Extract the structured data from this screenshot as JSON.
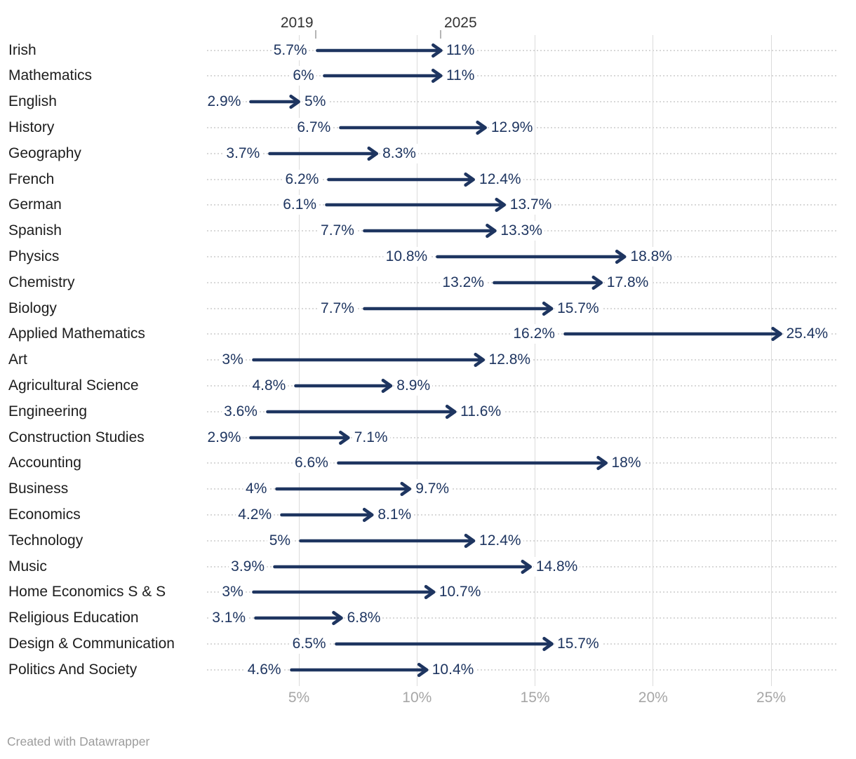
{
  "footer": {
    "credit": "Created with Datawrapper"
  },
  "colors": {
    "background": "#ffffff",
    "arrow": "#1e3560",
    "value_label": "#1e3560",
    "row_label": "#1d1d1d",
    "header": "#333333",
    "tick": "#b5b5b5",
    "gridline": "#dbdbdb",
    "dotted": "#d8d8d8",
    "axis_label": "#a6a6a6",
    "footer": "#9c9c9c"
  },
  "chart_data": {
    "type": "arrow",
    "column_headers": [
      "2019",
      "2025"
    ],
    "unit": "%",
    "x_axis": {
      "ticks": [
        5,
        10,
        15,
        20,
        25
      ],
      "tick_labels": [
        "5%",
        "10%",
        "15%",
        "20%",
        "25%"
      ],
      "range": [
        2,
        27.5
      ],
      "grid": true
    },
    "legend_position": "top-column-headers",
    "rows": [
      {
        "label": "Irish",
        "start": 5.7,
        "end": 11,
        "start_label": "5.7%",
        "end_label": "11%"
      },
      {
        "label": "Mathematics",
        "start": 6,
        "end": 11,
        "start_label": "6%",
        "end_label": "11%"
      },
      {
        "label": "English",
        "start": 2.9,
        "end": 5,
        "start_label": "2.9%",
        "end_label": "5%"
      },
      {
        "label": "History",
        "start": 6.7,
        "end": 12.9,
        "start_label": "6.7%",
        "end_label": "12.9%"
      },
      {
        "label": "Geography",
        "start": 3.7,
        "end": 8.3,
        "start_label": "3.7%",
        "end_label": "8.3%"
      },
      {
        "label": "French",
        "start": 6.2,
        "end": 12.4,
        "start_label": "6.2%",
        "end_label": "12.4%"
      },
      {
        "label": "German",
        "start": 6.1,
        "end": 13.7,
        "start_label": "6.1%",
        "end_label": "13.7%"
      },
      {
        "label": "Spanish",
        "start": 7.7,
        "end": 13.3,
        "start_label": "7.7%",
        "end_label": "13.3%"
      },
      {
        "label": "Physics",
        "start": 10.8,
        "end": 18.8,
        "start_label": "10.8%",
        "end_label": "18.8%"
      },
      {
        "label": "Chemistry",
        "start": 13.2,
        "end": 17.8,
        "start_label": "13.2%",
        "end_label": "17.8%"
      },
      {
        "label": "Biology",
        "start": 7.7,
        "end": 15.7,
        "start_label": "7.7%",
        "end_label": "15.7%"
      },
      {
        "label": "Applied Mathematics",
        "start": 16.2,
        "end": 25.4,
        "start_label": "16.2%",
        "end_label": "25.4%"
      },
      {
        "label": "Art",
        "start": 3,
        "end": 12.8,
        "start_label": "3%",
        "end_label": "12.8%"
      },
      {
        "label": "Agricultural Science",
        "start": 4.8,
        "end": 8.9,
        "start_label": "4.8%",
        "end_label": "8.9%"
      },
      {
        "label": "Engineering",
        "start": 3.6,
        "end": 11.6,
        "start_label": "3.6%",
        "end_label": "11.6%"
      },
      {
        "label": "Construction Studies",
        "start": 2.9,
        "end": 7.1,
        "start_label": "2.9%",
        "end_label": "7.1%"
      },
      {
        "label": "Accounting",
        "start": 6.6,
        "end": 18,
        "start_label": "6.6%",
        "end_label": "18%"
      },
      {
        "label": "Business",
        "start": 4,
        "end": 9.7,
        "start_label": "4%",
        "end_label": "9.7%"
      },
      {
        "label": "Economics",
        "start": 4.2,
        "end": 8.1,
        "start_label": "4.2%",
        "end_label": "8.1%"
      },
      {
        "label": "Technology",
        "start": 5,
        "end": 12.4,
        "start_label": "5%",
        "end_label": "12.4%"
      },
      {
        "label": "Music",
        "start": 3.9,
        "end": 14.8,
        "start_label": "3.9%",
        "end_label": "14.8%"
      },
      {
        "label": "Home Economics S & S",
        "start": 3,
        "end": 10.7,
        "start_label": "3%",
        "end_label": "10.7%"
      },
      {
        "label": "Religious Education",
        "start": 3.1,
        "end": 6.8,
        "start_label": "3.1%",
        "end_label": "6.8%"
      },
      {
        "label": "Design & Communication",
        "start": 6.5,
        "end": 15.7,
        "start_label": "6.5%",
        "end_label": "15.7%"
      },
      {
        "label": "Politics And Society",
        "start": 4.6,
        "end": 10.4,
        "start_label": "4.6%",
        "end_label": "10.4%"
      }
    ]
  }
}
